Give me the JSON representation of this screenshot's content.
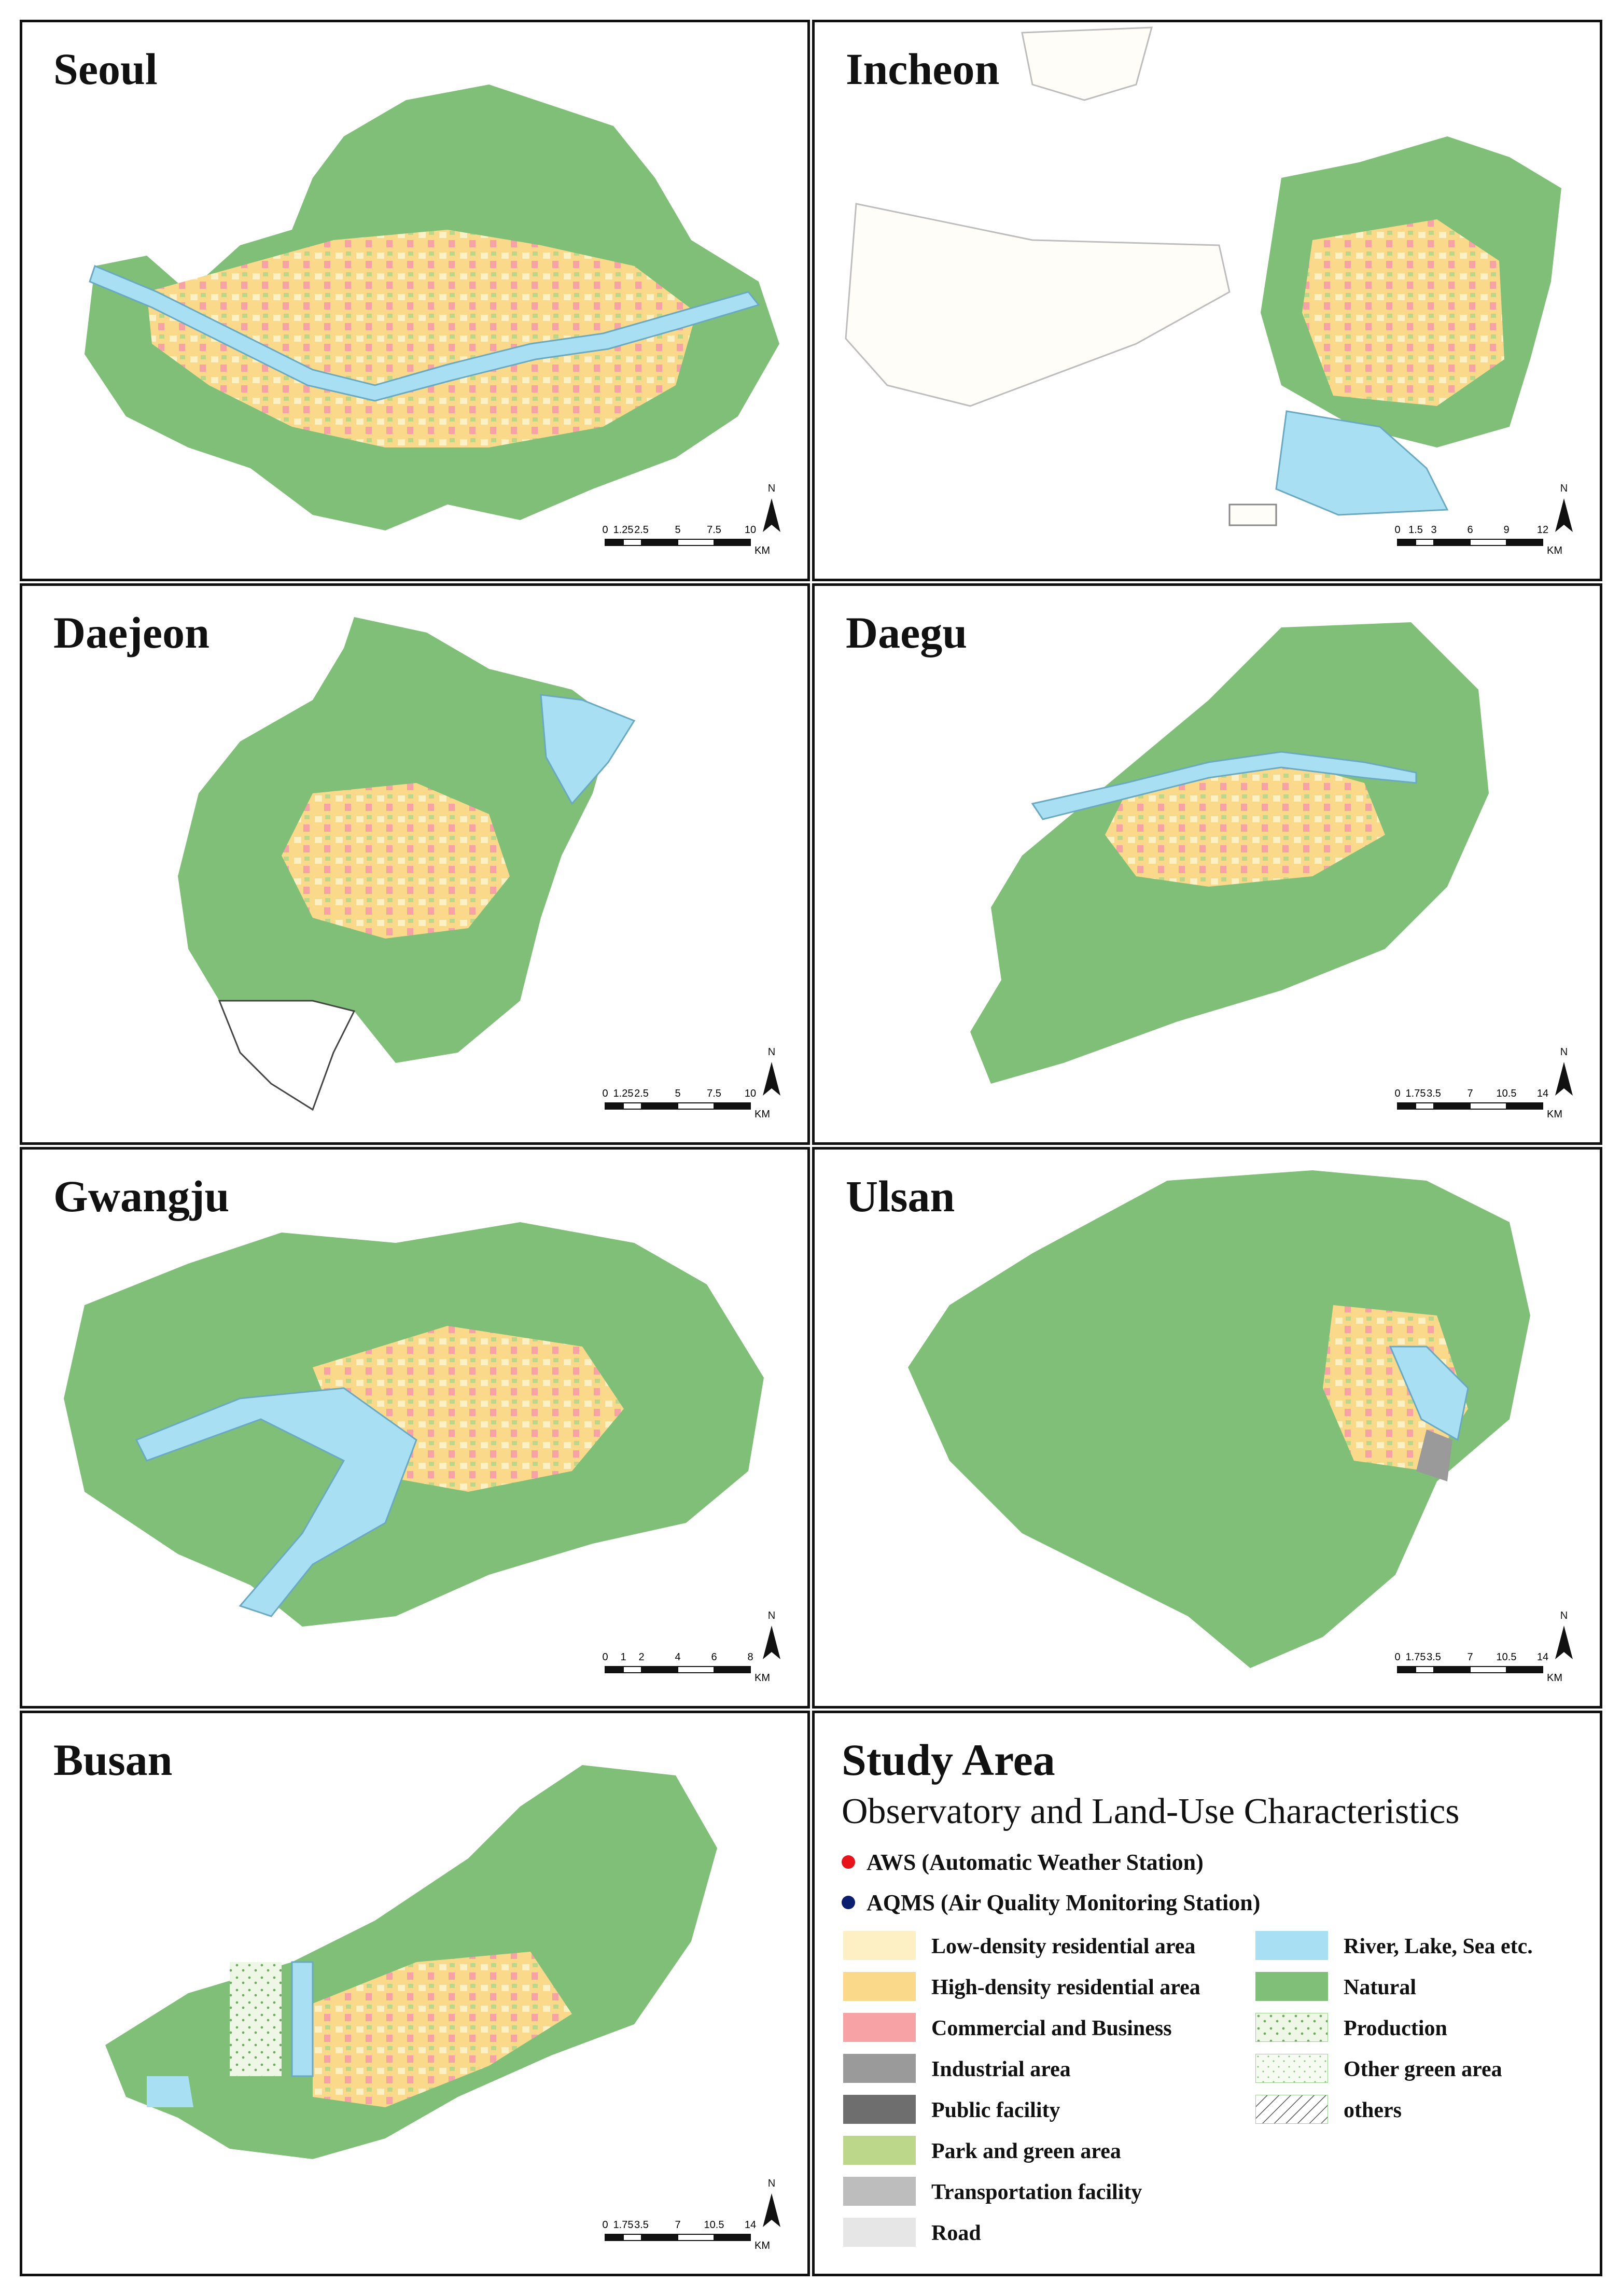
{
  "panels": [
    {
      "name": "Seoul",
      "scale_labels": [
        "0",
        "1.25",
        "2.5",
        "5",
        "7.5",
        "10"
      ],
      "unit": "KM"
    },
    {
      "name": "Incheon",
      "scale_labels": [
        "0",
        "1.5",
        "3",
        "6",
        "9",
        "12"
      ],
      "unit": "KM"
    },
    {
      "name": "Daejeon",
      "scale_labels": [
        "0",
        "1.25",
        "2.5",
        "5",
        "7.5",
        "10"
      ],
      "unit": "KM"
    },
    {
      "name": "Daegu",
      "scale_labels": [
        "0",
        "1.75",
        "3.5",
        "7",
        "10.5",
        "14"
      ],
      "unit": "KM"
    },
    {
      "name": "Gwangju",
      "scale_labels": [
        "0",
        "1",
        "2",
        "4",
        "6",
        "8"
      ],
      "unit": "KM"
    },
    {
      "name": "Ulsan",
      "scale_labels": [
        "0",
        "1.75",
        "3.5",
        "7",
        "10.5",
        "14"
      ],
      "unit": "KM"
    },
    {
      "name": "Busan",
      "scale_labels": [
        "0",
        "1.75",
        "3.5",
        "7",
        "10.5",
        "14"
      ],
      "unit": "KM"
    }
  ],
  "north_label": "N",
  "legend": {
    "title": "Study Area",
    "subtitle": "Observatory and Land-Use Characteristics",
    "stations": [
      {
        "label": "AWS (Automatic Weather Station)",
        "color": "#e8141b"
      },
      {
        "label": "AQMS (Air Quality Monitoring Station)",
        "color": "#0b1f6e"
      }
    ],
    "land_use_left": [
      {
        "label": "Low-density residential area",
        "color": "#fdf0c4"
      },
      {
        "label": "High-density residential area",
        "color": "#fbd98a"
      },
      {
        "label": "Commercial and Business",
        "color": "#f7a3a6"
      },
      {
        "label": "Industrial area",
        "color": "#9a9a9a"
      },
      {
        "label": "Public facility",
        "color": "#6e6e6e"
      },
      {
        "label": "Park and green area",
        "color": "#bcd68a"
      },
      {
        "label": "Transportation facility",
        "color": "#bdbdbd"
      },
      {
        "label": "Road",
        "color": "#e6e6e6"
      }
    ],
    "land_use_right": [
      {
        "label": "River, Lake, Sea etc.",
        "color": "#a9dff2"
      },
      {
        "label": "Natural",
        "color": "#7fbf78"
      },
      {
        "label": "Production",
        "color": "#ffffff",
        "pattern": "production"
      },
      {
        "label": "Other green area",
        "color": "#ffffff",
        "pattern": "othergreen"
      },
      {
        "label": "others",
        "color": "#ffffff",
        "pattern": "hatch"
      }
    ]
  },
  "colors": {
    "aws": "#e8141b",
    "aqms": "#0b1f6e",
    "natural": "#7fbf78",
    "water": "#a9dff2",
    "lowres": "#fdf0c4",
    "highres": "#fbd98a",
    "commercial": "#f7a3a6",
    "industrial": "#9a9a9a"
  }
}
